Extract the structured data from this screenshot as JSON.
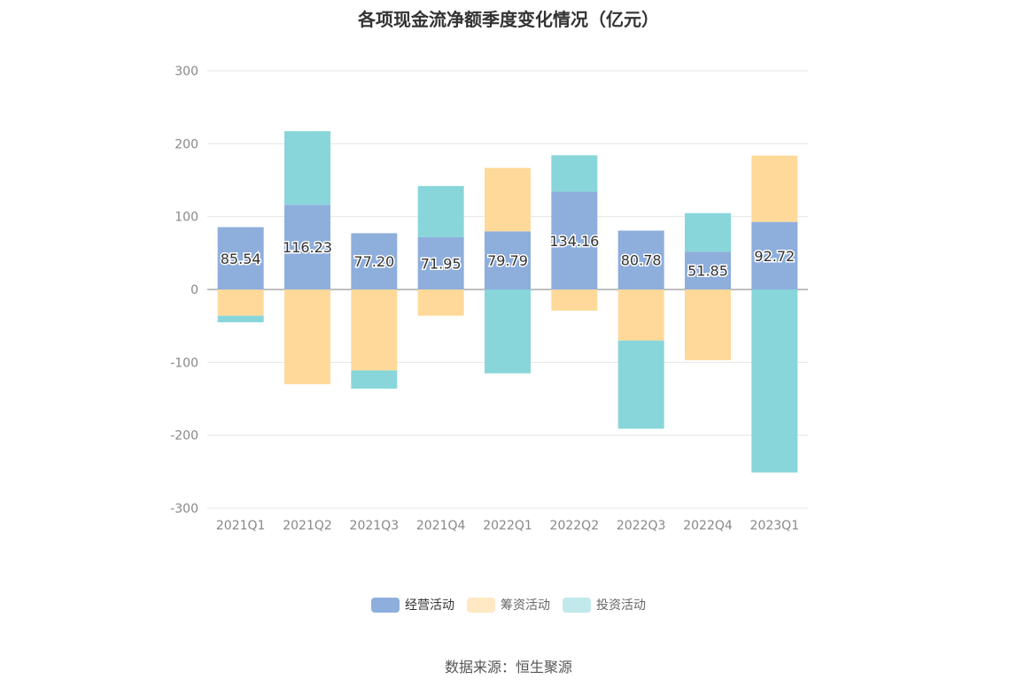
{
  "chart_data": {
    "type": "bar",
    "stacked": true,
    "title": "各项现金流净额季度变化情况（亿元）",
    "categories": [
      "2021Q1",
      "2021Q2",
      "2021Q3",
      "2021Q4",
      "2022Q1",
      "2022Q2",
      "2022Q3",
      "2022Q4",
      "2023Q1"
    ],
    "ylim": [
      -300,
      300
    ],
    "yticks": [
      300,
      200,
      100,
      0,
      -100,
      -200,
      -300
    ],
    "grid": true,
    "legend_position": "bottom",
    "series": [
      {
        "name": "经营活动",
        "color": "#8eaedc",
        "legend_color": "#8eaedc",
        "values": [
          85.54,
          116.23,
          77.2,
          71.95,
          79.79,
          134.16,
          80.78,
          51.85,
          92.72
        ],
        "labels": [
          "85.54",
          "116.23",
          "77.20",
          "71.95",
          "79.79",
          "134.16",
          "80.78",
          "51.85",
          "92.72"
        ]
      },
      {
        "name": "筹资活动",
        "color": "#ffd99a",
        "legend_color": "#ffe8c4",
        "values": [
          -36,
          -130,
          -111,
          -36,
          87,
          -29,
          -70,
          -97,
          91
        ]
      },
      {
        "name": "投资活动",
        "color": "#88d6da",
        "legend_color": "#c1e9ec",
        "values": [
          -9,
          101,
          -25,
          70,
          -115,
          50,
          -121,
          53,
          -251
        ]
      }
    ]
  },
  "source": "数据来源：恒生聚源"
}
